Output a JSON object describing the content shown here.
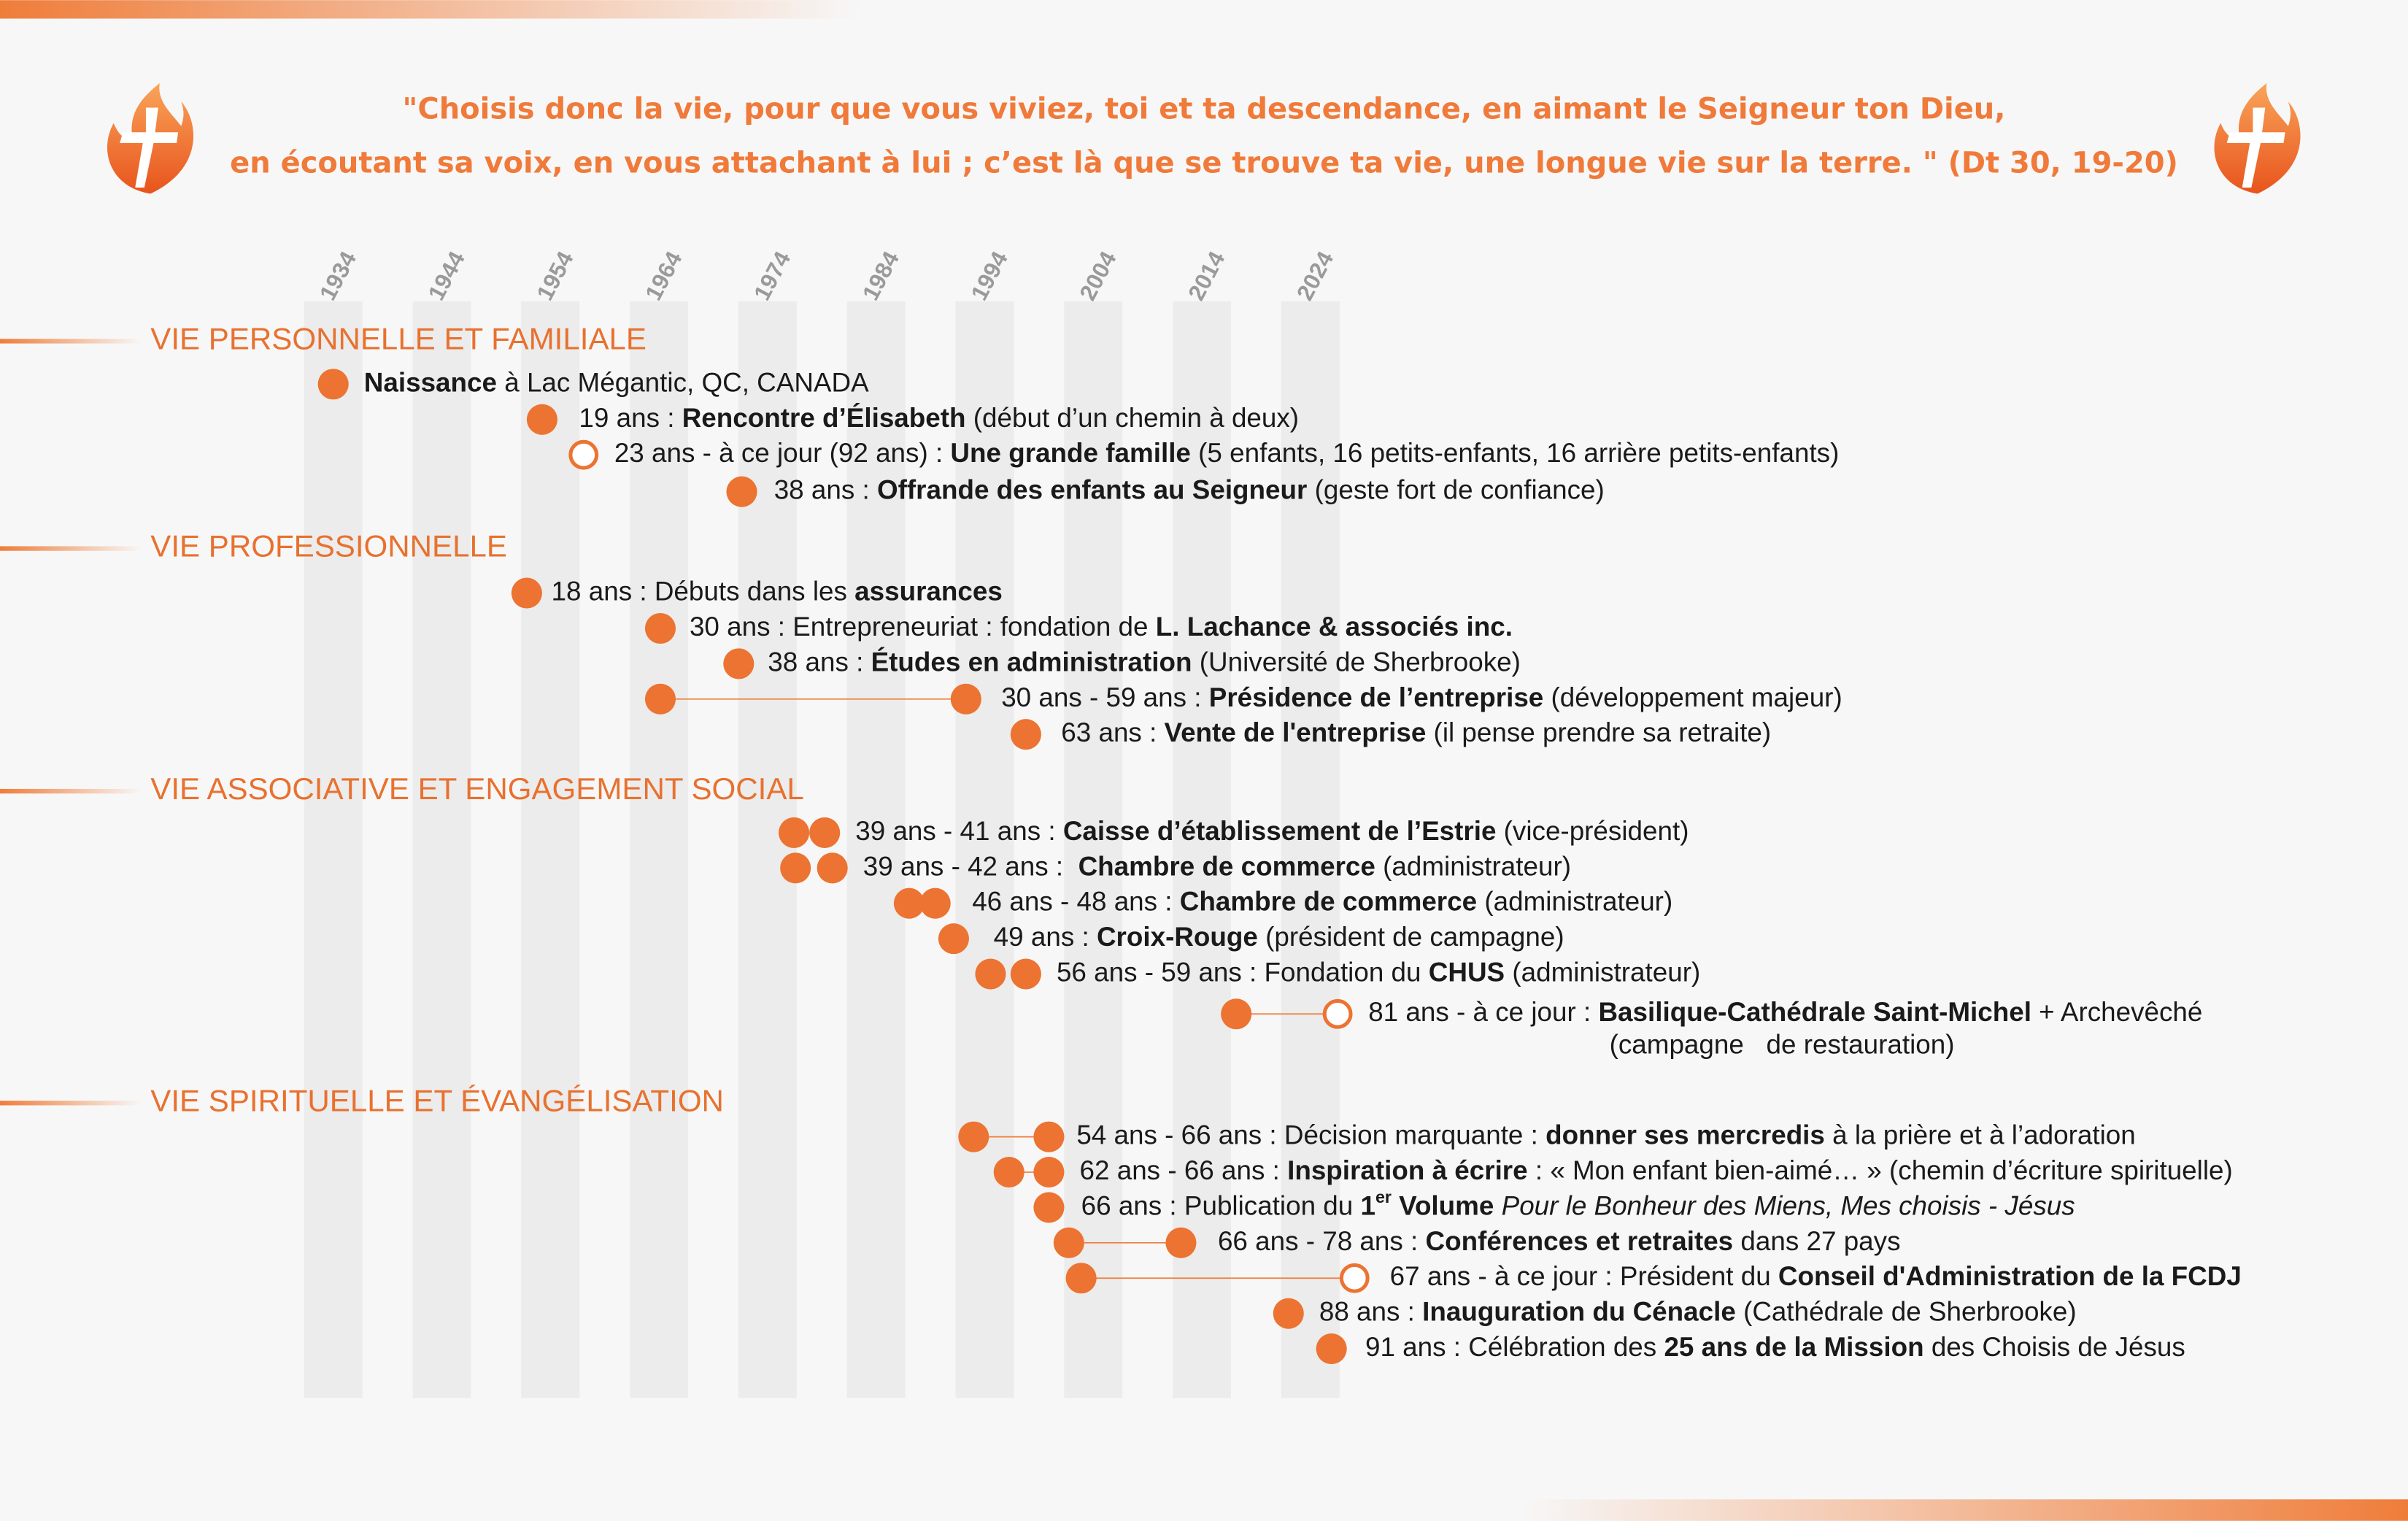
{
  "quote": {
    "lines": [
      "\"Choisis donc la vie, pour que vous viviez, toi et ta descendance, en aimant le Seigneur ton Dieu,",
      "en écoutant sa voix, en vous attachant à lui ; c’est là que se trouve ta vie, une longue vie sur la terre. \" (Dt 30, 19-20)"
    ]
  },
  "years": [
    "1934",
    "1944",
    "1954",
    "1964",
    "1974",
    "1984",
    "1994",
    "2004",
    "2014",
    "2024"
  ],
  "sections": [
    {
      "title": "VIE PERSONNELLE ET FAMILIALE",
      "items": [
        {
          "lines": [
            [
              {
                "text": "Naissance",
                "style": "bold"
              },
              {
                "text": " à Lac Mégantic, QC, CANADA"
              }
            ]
          ]
        },
        {
          "lines": [
            [
              {
                "text": "19 ans : "
              },
              {
                "text": "Rencontre d’Élisabeth",
                "style": "bold"
              },
              {
                "text": " (début d’un chemin à deux)"
              }
            ]
          ]
        },
        {
          "lines": [
            [
              {
                "text": "23 ans - à ce jour (92 ans) : "
              },
              {
                "text": "Une grande famille",
                "style": "bold"
              },
              {
                "text": " (5 enfants, 16 petits-enfants, 16 arrière petits-enfants)"
              }
            ]
          ]
        },
        {
          "lines": [
            [
              {
                "text": "38 ans : "
              },
              {
                "text": "Offrande des enfants au Seigneur",
                "style": "bold"
              },
              {
                "text": " (geste fort de confiance)"
              }
            ]
          ]
        }
      ]
    },
    {
      "title": "VIE PROFESSIONNELLE",
      "items": [
        {
          "lines": [
            [
              {
                "text": "18 ans : Débuts dans les "
              },
              {
                "text": "assurances",
                "style": "bold"
              }
            ]
          ]
        },
        {
          "lines": [
            [
              {
                "text": "30 ans : Entrepreneuriat : fondation de "
              },
              {
                "text": "L. Lachance & associés inc.",
                "style": "bold"
              }
            ]
          ]
        },
        {
          "lines": [
            [
              {
                "text": "38 ans : "
              },
              {
                "text": "Études en administration",
                "style": "bold"
              },
              {
                "text": " (Université de Sherbrooke)"
              }
            ]
          ]
        },
        {
          "lines": [
            [
              {
                "text": "30 ans - 59 ans : "
              },
              {
                "text": "Présidence de l’entreprise",
                "style": "bold"
              },
              {
                "text": " (développement majeur)"
              }
            ]
          ]
        },
        {
          "lines": [
            [
              {
                "text": "63 ans : "
              },
              {
                "text": "Vente de l'entreprise",
                "style": "bold"
              },
              {
                "text": " (il pense prendre sa retraite)"
              }
            ]
          ]
        }
      ]
    },
    {
      "title": "VIE ASSOCIATIVE ET ENGAGEMENT SOCIAL",
      "items": [
        {
          "lines": [
            [
              {
                "text": "39 ans - 41 ans : "
              },
              {
                "text": "Caisse d’établissement de l’Estrie",
                "style": "bold"
              },
              {
                "text": " (vice-président)"
              }
            ]
          ]
        },
        {
          "lines": [
            [
              {
                "text": "39 ans - 42 ans :  "
              },
              {
                "text": "Chambre de commerce",
                "style": "bold"
              },
              {
                "text": " (administrateur)"
              }
            ]
          ]
        },
        {
          "lines": [
            [
              {
                "text": "46 ans - 48 ans : "
              },
              {
                "text": "Chambre de commerce",
                "style": "bold"
              },
              {
                "text": " (administrateur)"
              }
            ]
          ]
        },
        {
          "lines": [
            [
              {
                "text": "49 ans : "
              },
              {
                "text": "Croix-Rouge",
                "style": "bold"
              },
              {
                "text": " (président de campagne)"
              }
            ]
          ]
        },
        {
          "lines": [
            [
              {
                "text": "56 ans - 59 ans : Fondation du "
              },
              {
                "text": "CHUS",
                "style": "bold"
              },
              {
                "text": " (administrateur)"
              }
            ]
          ]
        },
        {
          "lines": [
            [
              {
                "text": "81 ans - à ce jour : "
              },
              {
                "text": "Basilique-Cathédrale Saint-Michel",
                "style": "bold"
              },
              {
                "text": " + Archevêché"
              }
            ],
            [
              {
                "text": "(campagne   de restauration)"
              }
            ]
          ]
        }
      ]
    },
    {
      "title": "VIE SPIRITUELLE ET ÉVANGÉLISATION",
      "items": [
        {
          "lines": [
            [
              {
                "text": "54 ans - 66 ans : Décision marquante : "
              },
              {
                "text": "donner ses mercredis",
                "style": "bold"
              },
              {
                "text": " à la prière et à l’adoration"
              }
            ]
          ]
        },
        {
          "lines": [
            [
              {
                "text": "62 ans - 66 ans : "
              },
              {
                "text": "Inspiration à écrire",
                "style": "bold"
              },
              {
                "text": " : « Mon enfant bien-aimé… » (chemin d’écriture spirituelle)"
              }
            ]
          ]
        },
        {
          "lines": [
            [
              {
                "text": "66 ans : Publication du "
              },
              {
                "text": "1",
                "style": "bold"
              },
              {
                "text": "er",
                "style": "sup"
              },
              {
                "text": " Volume",
                "style": "bold"
              },
              {
                "text": " "
              },
              {
                "text": "Pour le Bonheur des Miens, Mes choisis - Jésus",
                "style": "italic"
              }
            ]
          ]
        },
        {
          "lines": [
            [
              {
                "text": "66 ans - 78 ans : "
              },
              {
                "text": "Conférences et retraites",
                "style": "bold"
              },
              {
                "text": " dans 27 pays"
              }
            ]
          ]
        },
        {
          "lines": [
            [
              {
                "text": "67 ans - à ce jour : Président du "
              },
              {
                "text": "Conseil d'Administration de la FCDJ",
                "style": "bold"
              }
            ]
          ]
        },
        {
          "lines": [
            [
              {
                "text": "88 ans : "
              },
              {
                "text": "Inauguration du Cénacle",
                "style": "bold"
              },
              {
                "text": " (Cathédrale de Sherbrooke)"
              }
            ]
          ]
        },
        {
          "lines": [
            [
              {
                "text": "91 ans : Célébration des "
              },
              {
                "text": "25 ans de la Mission",
                "style": "bold"
              },
              {
                "text": " des Choisis de Jésus"
              }
            ]
          ]
        }
      ]
    }
  ]
}
